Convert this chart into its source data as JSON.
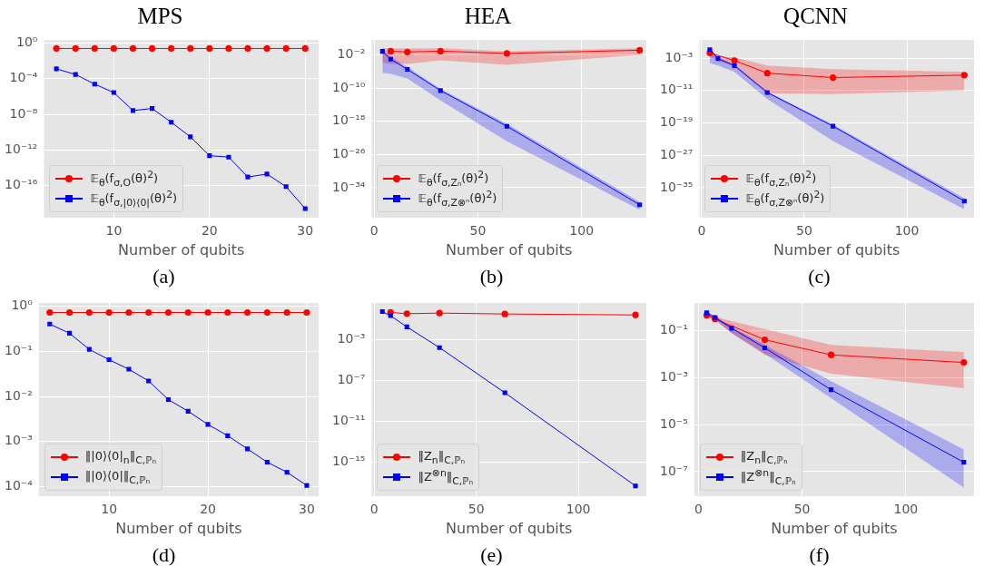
{
  "chart_data": [
    {
      "type": "line",
      "title": "MPS",
      "xlabel": "Number of qubits",
      "annotations": [
        "(a)"
      ],
      "log": true,
      "grid": true,
      "legend": "bottom left",
      "x": [
        4,
        6,
        8,
        10,
        12,
        14,
        16,
        18,
        20,
        22,
        24,
        26,
        28,
        30
      ],
      "xlim": [
        2.7,
        31.4
      ],
      "xticks": [
        10,
        20,
        30
      ],
      "ylim": [
        2.5e-20,
        2.3
      ],
      "yticks": [
        {
          "value": 1,
          "label": "10⁰"
        },
        {
          "value": 0.0001,
          "label": "10⁻⁴"
        },
        {
          "value": 1e-08,
          "label": "10⁻⁸"
        },
        {
          "value": 1e-12,
          "label": "10⁻¹²"
        },
        {
          "value": 1e-16,
          "label": "10⁻¹⁶"
        }
      ],
      "series": [
        {
          "name": "𝔼$_{θ}$(f$_{σ,O}$(θ)$^{2}$)",
          "color": "#ff0000",
          "marker": "circle",
          "values": [
            0.25,
            0.25,
            0.25,
            0.25,
            0.25,
            0.25,
            0.25,
            0.25,
            0.25,
            0.25,
            0.25,
            0.25,
            0.25,
            0.25
          ]
        },
        {
          "name": "𝔼$_{θ}$(f$_{σ,|0⟩⟨0|}$(θ)$^{2}$)",
          "color": "#0000ff",
          "marker": "square",
          "values": [
            0.0013,
            0.0003,
            2.5e-05,
            2.8e-06,
            2.7e-08,
            4.6e-08,
            1.3e-09,
            3e-11,
            2.3e-13,
            1.6e-13,
            9.3e-16,
            2e-15,
            7.6e-17,
            2.6e-19
          ]
        }
      ]
    },
    {
      "type": "line",
      "title": "HEA",
      "xlabel": "Number of qubits",
      "annotations": [
        "(b)"
      ],
      "log": true,
      "grid": true,
      "legend": "bottom left",
      "x": [
        4,
        8,
        16,
        32,
        64,
        128
      ],
      "xlim": [
        -1.2,
        131.2
      ],
      "xticks": [
        0,
        50,
        100
      ],
      "ylim": [
        6e-42,
        40
      ],
      "yticks": [
        {
          "value": 0.01,
          "label": "10⁻²"
        },
        {
          "value": 1e-10,
          "label": "10⁻¹⁰"
        },
        {
          "value": 1e-18,
          "label": "10⁻¹⁸"
        },
        {
          "value": 1e-26,
          "label": "10⁻²⁶"
        },
        {
          "value": 1e-34,
          "label": "10⁻³⁴"
        }
      ],
      "series": [
        {
          "name": "𝔼$_{θ}$(f$_{σ,Zₙ}$(θ)$^{2}$)",
          "color": "#ff0000",
          "marker": "circle",
          "values": [
            null,
            0.079,
            0.05,
            0.079,
            0.022,
            0.13
          ],
          "upper": [
            0.4,
            0.4,
            0.32,
            0.4,
            0.079,
            0.4
          ],
          "lower": [
            0.00013,
            6.3e-05,
            6.3e-05,
            0.0005,
            4e-05,
            0.01
          ]
        },
        {
          "name": "𝔼$_{θ}$(f$_{σ,Z⊗ⁿ}$(θ)$^{2}$)",
          "color": "#0000ff",
          "marker": "square",
          "values": [
            0.069,
            0.00089,
            3.2e-06,
            2.5e-11,
            6.3e-20,
            7.9e-39
          ],
          "upper": [
            0.4,
            0.0032,
            1.3e-05,
            6.3e-11,
            2.5e-19,
            4e-38
          ],
          "lower": [
            5e-07,
            2.5e-07,
            2e-08,
            1e-13,
            1.6e-23,
            5e-40
          ]
        }
      ]
    },
    {
      "type": "line",
      "title": "QCNN",
      "xlabel": "Number of qubits",
      "annotations": [
        "(c)"
      ],
      "log": true,
      "grid": true,
      "legend": "bottom left",
      "x": [
        4,
        8,
        16,
        32,
        64,
        128
      ],
      "xlim": [
        -1.1,
        132.7
      ],
      "xticks": [
        0,
        50,
        100
      ],
      "ylim": [
        4e-43,
        32
      ],
      "yticks": [
        {
          "value": 0.001,
          "label": "10⁻³"
        },
        {
          "value": 1e-11,
          "label": "10⁻¹¹"
        },
        {
          "value": 1e-19,
          "label": "10⁻¹⁹"
        },
        {
          "value": 1e-27,
          "label": "10⁻²⁷"
        },
        {
          "value": 1e-35,
          "label": "10⁻³⁵"
        }
      ],
      "series": [
        {
          "name": "𝔼$_{θ}$(f$_{σ,Zₙ}$(θ)$^{2}$)",
          "color": "#ff0000",
          "marker": "circle",
          "values": [
            0.02,
            null,
            0.00025,
            2e-07,
            1.6e-08,
            6.3e-08
          ],
          "upper": [
            0.032,
            0.0025,
            0.0016,
            1.6e-05,
            2e-06,
            4e-07
          ],
          "lower": [
            0.0025,
            0.00013,
            1.6e-05,
            2e-12,
            1.3e-12,
            1e-11
          ]
        },
        {
          "name": "𝔼$_{θ}$(f$_{σ,Z⊗ⁿ}$(θ)$^{2}$)",
          "color": "#0000ff",
          "marker": "square",
          "values": [
            0.13,
            0.00079,
            1.3e-05,
            3.2e-12,
            1.6e-20,
            5e-39
          ],
          "upper": [
            0.2,
            0.0016,
            3.2e-05,
            6.3e-12,
            4e-20,
            2.5e-38
          ],
          "lower": [
            6.3e-05,
            1.6e-05,
            4e-07,
            7.9e-14,
            3.2e-24,
            5e-41
          ]
        }
      ]
    },
    {
      "type": "line",
      "xlabel": "Number of qubits",
      "annotations": [
        "(d)"
      ],
      "log": true,
      "grid": true,
      "legend": "bottom left",
      "x": [
        4,
        6,
        8,
        10,
        12,
        14,
        16,
        18,
        20,
        22,
        24,
        26,
        28,
        30
      ],
      "xlim": [
        2.9,
        31.2
      ],
      "xticks": [
        10,
        20,
        30
      ],
      "ylim": [
        6.2e-05,
        1.17
      ],
      "yticks": [
        {
          "value": 1,
          "label": "10⁰"
        },
        {
          "value": 0.1,
          "label": "10⁻¹"
        },
        {
          "value": 0.01,
          "label": "10⁻²"
        },
        {
          "value": 0.001,
          "label": "10⁻³"
        },
        {
          "value": 0.0001,
          "label": "10⁻⁴"
        }
      ],
      "series": [
        {
          "name": "‖|0⟩⟨0|$_{n}$‖$_{C,ℙₙ}$",
          "color": "#ff0000",
          "marker": "circle",
          "values": [
            0.72,
            0.72,
            0.72,
            0.72,
            0.72,
            0.72,
            0.72,
            0.72,
            0.72,
            0.72,
            0.72,
            0.72,
            0.72,
            0.72
          ]
        },
        {
          "name": "‖|0⟩⟨0|‖$_{C,ℙₙ}$",
          "color": "#0000ff",
          "marker": "square",
          "values": [
            0.4,
            0.25,
            0.11,
            0.065,
            0.04,
            0.022,
            0.0085,
            0.0047,
            0.0024,
            0.00135,
            0.00069,
            0.00035,
            0.00021,
            0.000107
          ]
        }
      ]
    },
    {
      "type": "line",
      "xlabel": "Number of qubits",
      "annotations": [
        "(e)"
      ],
      "log": true,
      "grid": true,
      "legend": "bottom left",
      "x": [
        4,
        8,
        16,
        32,
        64,
        128
      ],
      "xlim": [
        -1.25,
        133.3
      ],
      "xticks": [
        0,
        50,
        100
      ],
      "ylim": [
        5e-19,
        3.7
      ],
      "yticks": [
        {
          "value": 0.001,
          "label": "10⁻³"
        },
        {
          "value": 1e-07,
          "label": "10⁻⁷"
        },
        {
          "value": 1e-11,
          "label": "10⁻¹¹"
        },
        {
          "value": 1e-15,
          "label": "10⁻¹⁵"
        }
      ],
      "series": [
        {
          "name": "‖Z$_{n}$‖$_{C,ℙₙ}$",
          "color": "#ff0000",
          "marker": "circle",
          "values": [
            null,
            0.44,
            0.33,
            0.38,
            0.31,
            0.25
          ]
        },
        {
          "name": "‖Z$^{⊗n}$‖$_{C,ℙₙ}$",
          "color": "#0000ff",
          "marker": "square",
          "values": [
            0.54,
            0.21,
            0.017,
            0.00016,
            6.3e-09,
            5e-18
          ]
        }
      ]
    },
    {
      "type": "line",
      "xlabel": "Number of qubits",
      "annotations": [
        "(f)"
      ],
      "log": true,
      "grid": true,
      "legend": "bottom left",
      "x": [
        4,
        8,
        16,
        32,
        64,
        128
      ],
      "xlim": [
        -2,
        132.9
      ],
      "xticks": [
        0,
        50,
        100
      ],
      "ylim": [
        9.3e-09,
        1.55
      ],
      "yticks": [
        {
          "value": 0.1,
          "label": "10⁻¹"
        },
        {
          "value": 0.001,
          "label": "10⁻³"
        },
        {
          "value": 1e-05,
          "label": "10⁻⁵"
        },
        {
          "value": 1e-07,
          "label": "10⁻⁷"
        }
      ],
      "series": [
        {
          "name": "‖Z$_{n}$‖$_{C,ℙₙ}$",
          "color": "#ff0000",
          "marker": "circle",
          "values": [
            0.47,
            0.32,
            null,
            0.042,
            0.0095,
            0.0045
          ],
          "upper": [
            0.5,
            0.41,
            0.26,
            0.12,
            0.025,
            0.0126
          ],
          "lower": [
            0.4,
            0.28,
            0.081,
            0.0095,
            0.0015,
            0.00036
          ]
        },
        {
          "name": "‖Z$^{⊗n}$‖$_{C,ℙₙ}$",
          "color": "#0000ff",
          "marker": "square",
          "values": [
            0.59,
            0.37,
            0.13,
            0.019,
            0.00031,
            2.5e-07
          ],
          "upper": [
            0.63,
            0.45,
            0.15,
            0.025,
            0.00072,
            8.9e-07
          ],
          "lower": [
            0.5,
            0.32,
            0.081,
            0.0105,
            0.000135,
            2.1e-08
          ]
        }
      ]
    }
  ]
}
